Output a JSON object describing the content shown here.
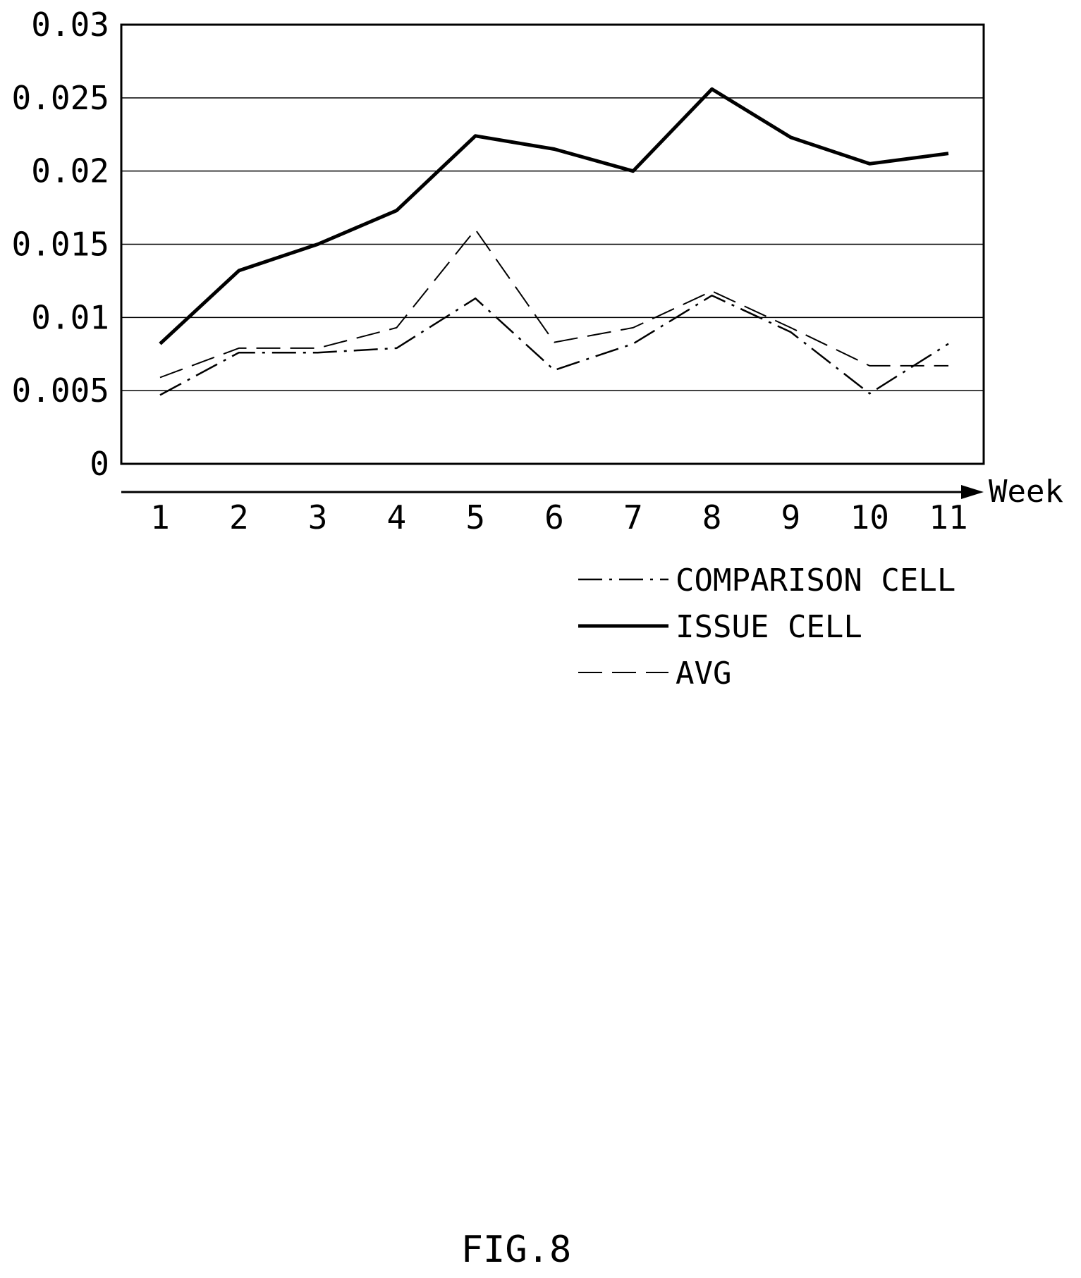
{
  "chart_data": {
    "type": "line",
    "xlabel": "Week",
    "ylabel": "",
    "categories": [
      "1",
      "2",
      "3",
      "4",
      "5",
      "6",
      "7",
      "8",
      "9",
      "10",
      "11"
    ],
    "ylim": [
      0,
      0.03
    ],
    "yticks": [
      "0",
      "0.005",
      "0.01",
      "0.015",
      "0.02",
      "0.025",
      "0.03"
    ],
    "grid": true,
    "legend_position": "bottom-right",
    "series": [
      {
        "name": "COMPARISON CELL",
        "style": "dash-dot",
        "values": [
          0.0047,
          0.0076,
          0.0076,
          0.0079,
          0.0113,
          0.0064,
          0.0082,
          0.0115,
          0.009,
          0.0048,
          0.0082
        ]
      },
      {
        "name": "ISSUE CELL",
        "style": "solid-bold",
        "values": [
          0.0082,
          0.0132,
          0.015,
          0.0173,
          0.0224,
          0.0215,
          0.02,
          0.0256,
          0.0223,
          0.0205,
          0.0212
        ]
      },
      {
        "name": "AVG",
        "style": "dashed",
        "values": [
          0.0059,
          0.0079,
          0.0079,
          0.0093,
          0.016,
          0.0083,
          0.0093,
          0.0118,
          0.0093,
          0.0067,
          0.0067
        ]
      }
    ]
  },
  "figure_label": "FIG.8",
  "colors": {
    "line": "#000000",
    "grid": "#000000",
    "background": "#ffffff"
  }
}
